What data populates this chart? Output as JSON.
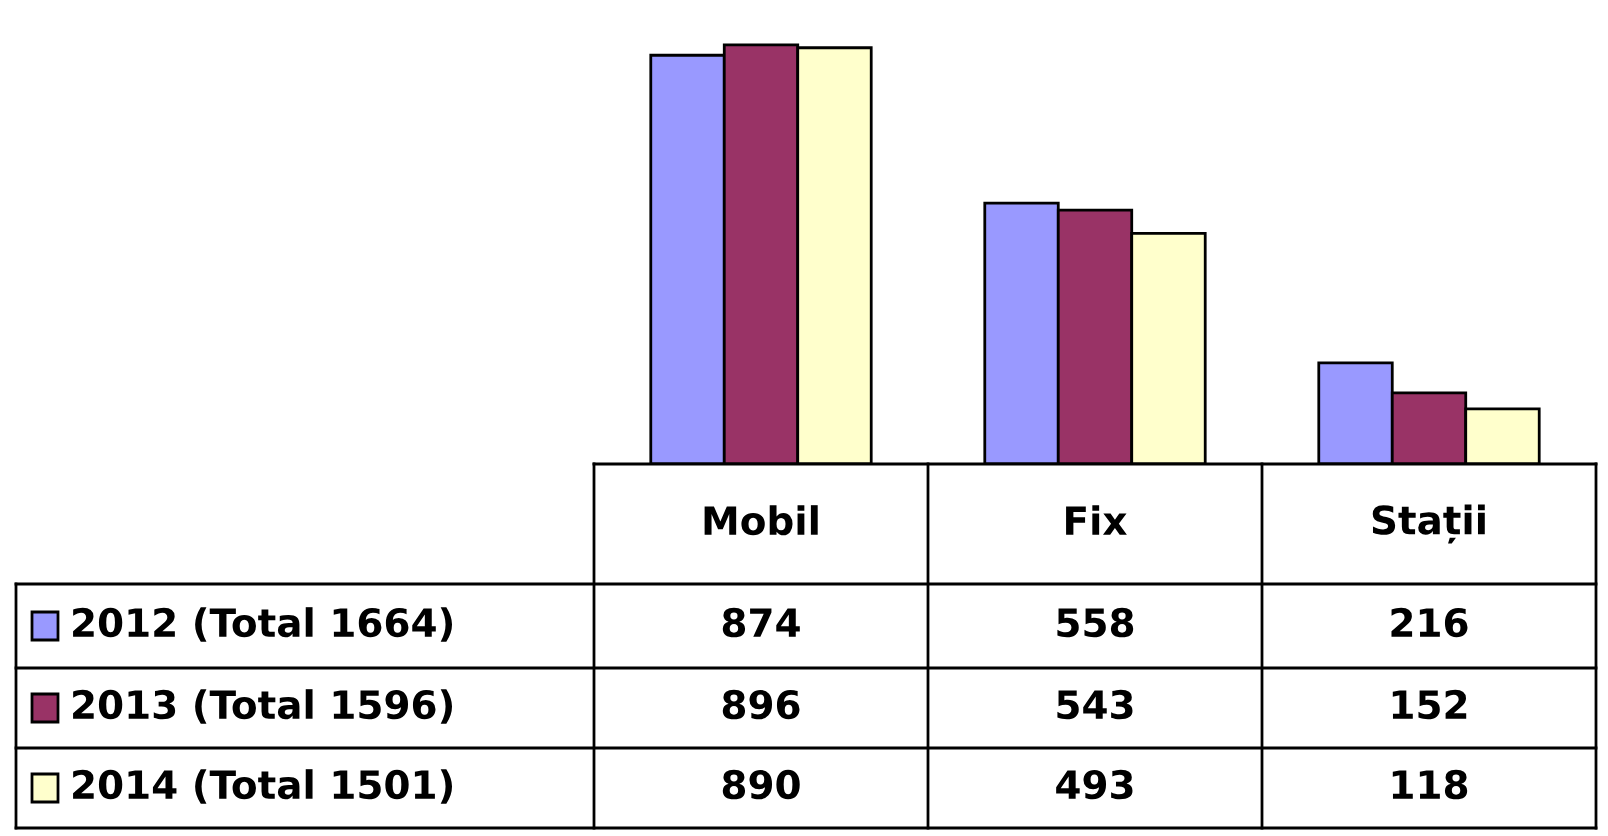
{
  "chart_data": {
    "type": "bar",
    "categories": [
      "Mobil",
      "Fix",
      "Stații"
    ],
    "series": [
      {
        "name": "2012 (Total 1664)",
        "color": "#9999ff",
        "values": [
          874,
          558,
          216
        ]
      },
      {
        "name": "2013 (Total 1596)",
        "color": "#993366",
        "values": [
          896,
          543,
          152
        ]
      },
      {
        "name": "2014 (Total 1501)",
        "color": "#ffffcc",
        "values": [
          890,
          493,
          118
        ]
      }
    ],
    "data_labels": true,
    "legend": "left"
  }
}
